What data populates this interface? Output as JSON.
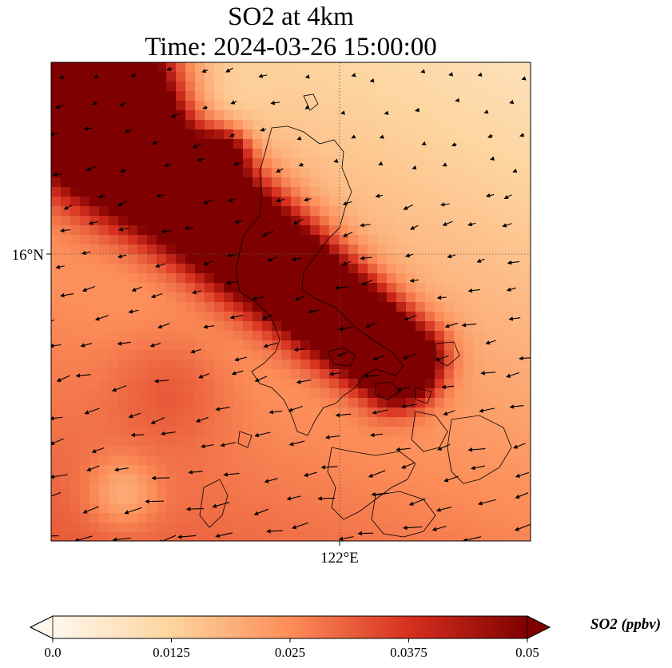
{
  "chart_data": {
    "type": "heatmap",
    "title_line1": "SO2 at 4km",
    "title_line2": "Time: 2024-03-26 15:00:00",
    "lat_ticks": [
      {
        "value": 16,
        "label": "16°N"
      }
    ],
    "lon_ticks": [
      {
        "value": 122,
        "label": "122°E"
      }
    ],
    "extent": {
      "lon_min": 120.8,
      "lon_max": 123.2,
      "lat_min": 14.55,
      "lat_max": 17.0
    },
    "grid": true,
    "colormap": [
      "#fff7ec",
      "#fdd49e",
      "#fc8d59",
      "#d7301f",
      "#7f0000"
    ],
    "colorbar": {
      "label": "SO2 (ppbv)",
      "min": 0.0,
      "max": 0.05,
      "extend": "both",
      "tick_values": [
        0.0,
        0.0125,
        0.025,
        0.0375,
        0.05
      ],
      "tick_labels": [
        "0.0",
        "0.0125",
        "0.025",
        "0.0375",
        "0.05"
      ]
    },
    "field_description": "Saturated SO2 plume (>=0.05 ppbv) along a band from the northwest corner through central Luzon to ~122.3°E, 15.6°N; lighter values (~0.01-0.02) north and east; moderate values (~0.02-0.03) southwest.",
    "wind_vectors": "Quiver arrows mostly pointing west-northwest, stronger over land and south."
  }
}
